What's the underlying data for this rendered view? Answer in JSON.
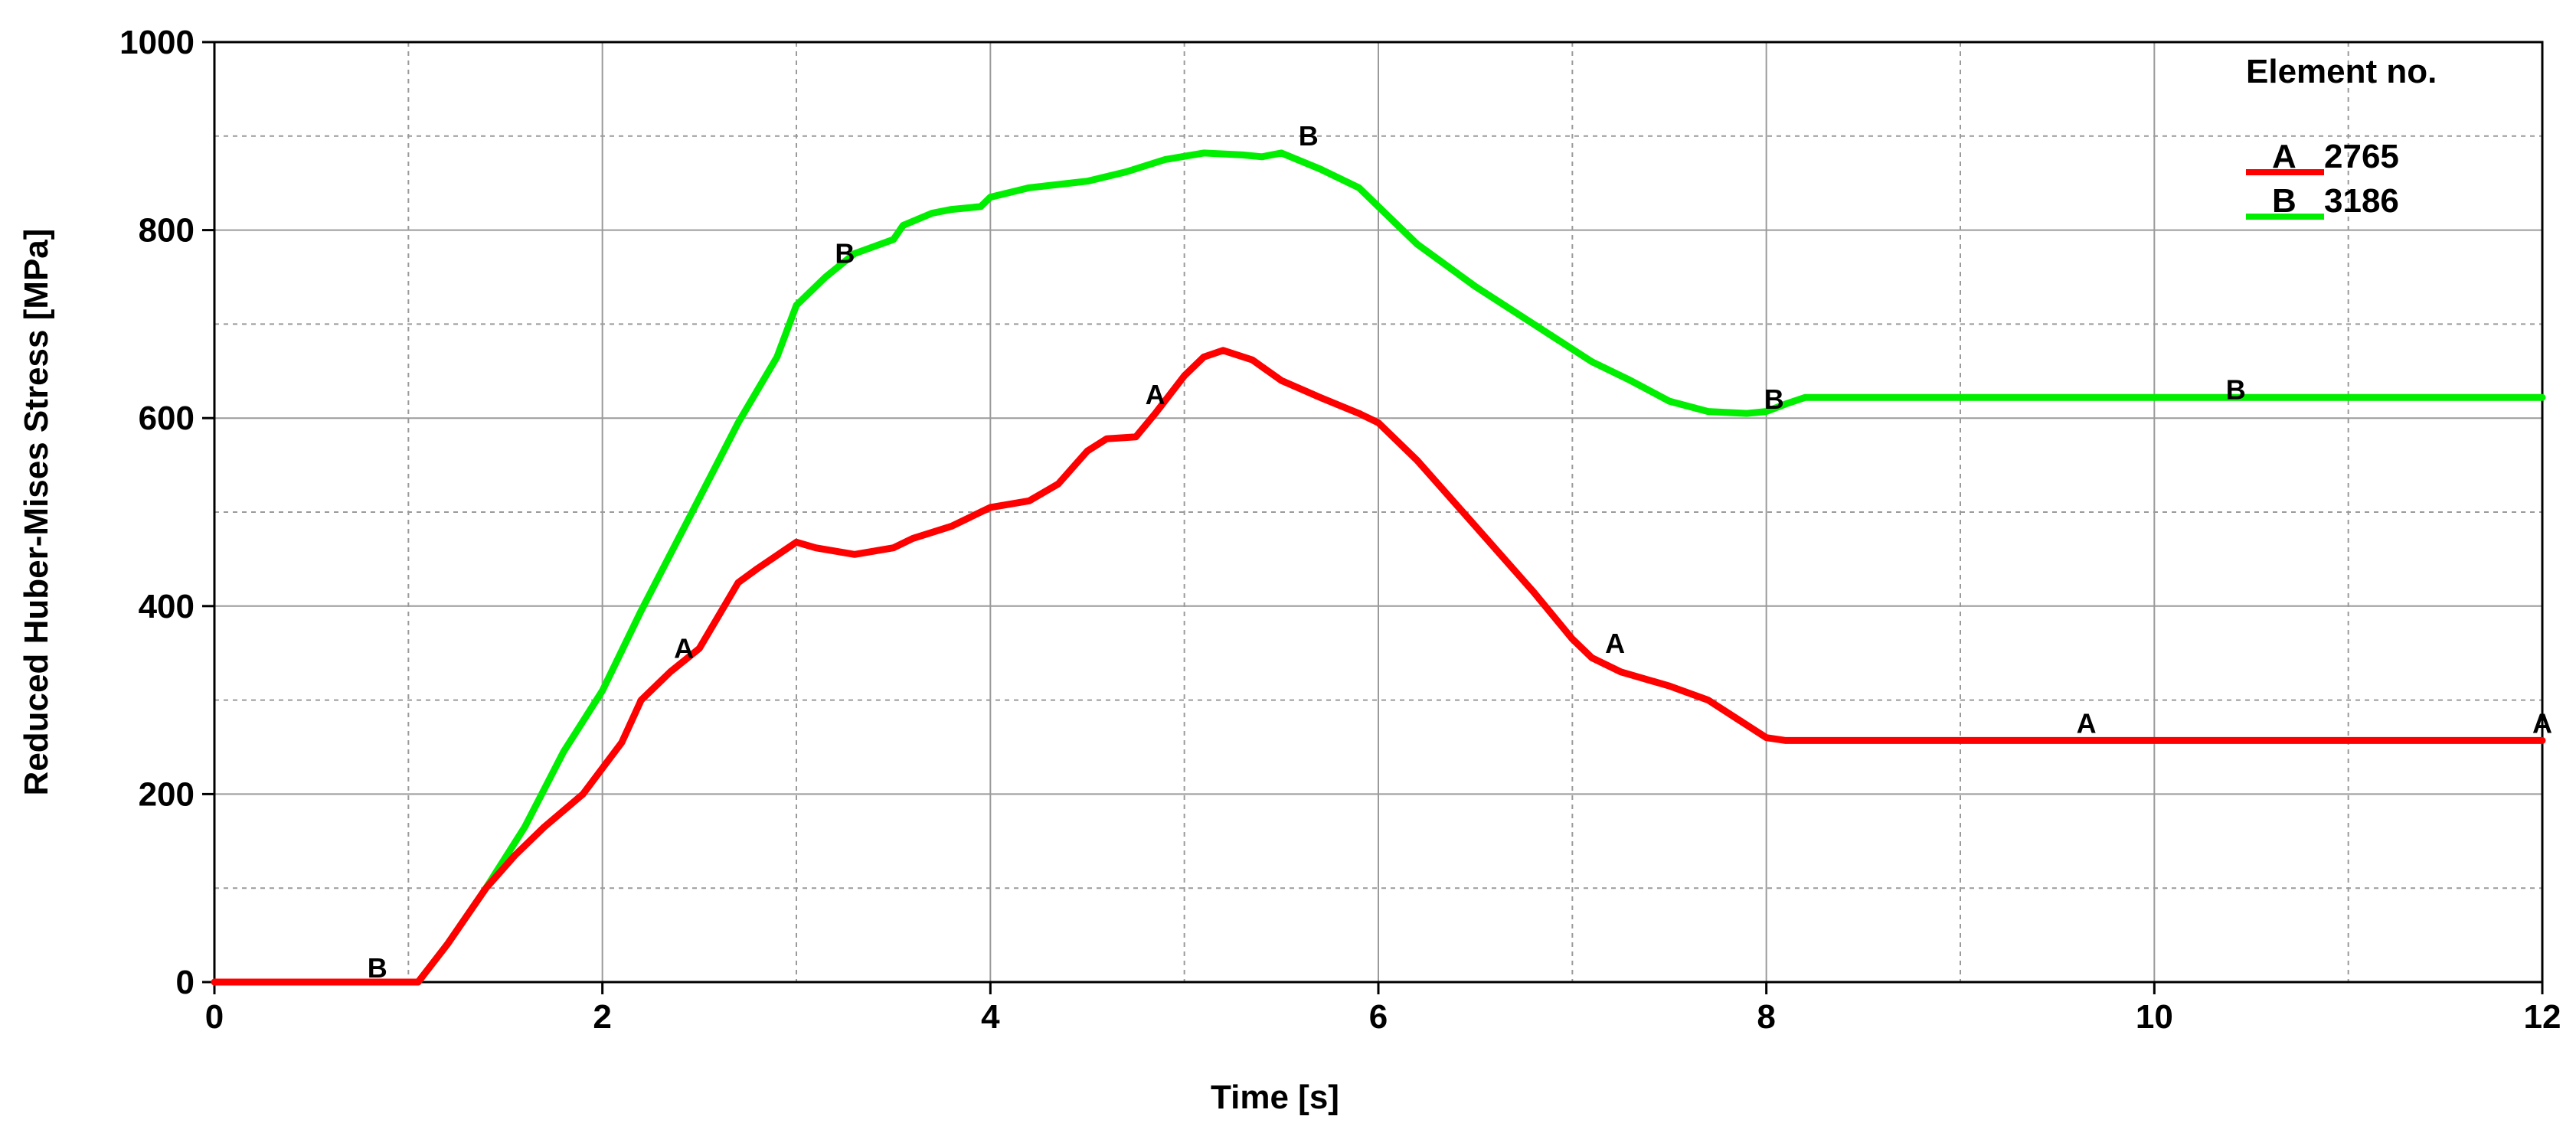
{
  "chart_data": {
    "type": "line",
    "xlabel": "Time [s]",
    "ylabel": "Reduced Huber-Mises Stress [MPa]",
    "xlim": [
      0,
      12
    ],
    "ylim": [
      0,
      1000
    ],
    "x_ticks": [
      0,
      2,
      4,
      6,
      8,
      10,
      12
    ],
    "y_ticks": [
      0,
      200,
      400,
      600,
      800,
      1000
    ],
    "x_minor_step": 1,
    "y_minor_step": 100,
    "grid": true,
    "legend": {
      "title": "Element no.",
      "placement": "top-right",
      "entries": [
        {
          "key": "A",
          "label": "2765",
          "color": "#ff0000"
        },
        {
          "key": "B",
          "label": "3186",
          "color": "#00ee00"
        }
      ]
    },
    "series": [
      {
        "key": "A",
        "name": "2765",
        "color": "#ff0000",
        "points": [
          [
            0,
            0
          ],
          [
            1.0,
            0
          ],
          [
            1.05,
            0
          ],
          [
            1.2,
            40
          ],
          [
            1.4,
            100
          ],
          [
            1.55,
            135
          ],
          [
            1.7,
            165
          ],
          [
            1.9,
            200
          ],
          [
            2.1,
            255
          ],
          [
            2.2,
            300
          ],
          [
            2.35,
            330
          ],
          [
            2.5,
            355
          ],
          [
            2.6,
            390
          ],
          [
            2.7,
            425
          ],
          [
            2.8,
            440
          ],
          [
            3.0,
            468
          ],
          [
            3.1,
            462
          ],
          [
            3.3,
            455
          ],
          [
            3.5,
            462
          ],
          [
            3.6,
            472
          ],
          [
            3.8,
            485
          ],
          [
            4.0,
            505
          ],
          [
            4.2,
            512
          ],
          [
            4.35,
            530
          ],
          [
            4.5,
            565
          ],
          [
            4.6,
            578
          ],
          [
            4.75,
            580
          ],
          [
            4.85,
            605
          ],
          [
            5.0,
            645
          ],
          [
            5.1,
            665
          ],
          [
            5.2,
            672
          ],
          [
            5.35,
            662
          ],
          [
            5.5,
            640
          ],
          [
            5.7,
            622
          ],
          [
            5.9,
            605
          ],
          [
            6.0,
            595
          ],
          [
            6.2,
            555
          ],
          [
            6.5,
            485
          ],
          [
            6.8,
            415
          ],
          [
            7.0,
            365
          ],
          [
            7.1,
            345
          ],
          [
            7.25,
            330
          ],
          [
            7.5,
            315
          ],
          [
            7.7,
            300
          ],
          [
            7.85,
            280
          ],
          [
            8.0,
            260
          ],
          [
            8.1,
            257
          ],
          [
            9.0,
            257
          ],
          [
            10.0,
            257
          ],
          [
            11.0,
            257
          ],
          [
            12.0,
            257
          ]
        ],
        "markers": [
          [
            2.42,
            345
          ],
          [
            4.85,
            615
          ],
          [
            7.22,
            350
          ],
          [
            9.65,
            265
          ],
          [
            12.0,
            265
          ]
        ]
      },
      {
        "key": "B",
        "name": "3186",
        "color": "#00ee00",
        "points": [
          [
            0,
            0
          ],
          [
            1.0,
            0
          ],
          [
            1.05,
            0
          ],
          [
            1.2,
            40
          ],
          [
            1.4,
            100
          ],
          [
            1.6,
            165
          ],
          [
            1.8,
            245
          ],
          [
            2.0,
            310
          ],
          [
            2.2,
            395
          ],
          [
            2.4,
            475
          ],
          [
            2.6,
            555
          ],
          [
            2.7,
            595
          ],
          [
            2.9,
            665
          ],
          [
            3.0,
            720
          ],
          [
            3.15,
            750
          ],
          [
            3.3,
            775
          ],
          [
            3.5,
            790
          ],
          [
            3.55,
            805
          ],
          [
            3.7,
            818
          ],
          [
            3.8,
            822
          ],
          [
            3.95,
            825
          ],
          [
            4.0,
            835
          ],
          [
            4.2,
            845
          ],
          [
            4.5,
            852
          ],
          [
            4.7,
            862
          ],
          [
            4.9,
            875
          ],
          [
            5.1,
            882
          ],
          [
            5.3,
            880
          ],
          [
            5.4,
            878
          ],
          [
            5.5,
            882
          ],
          [
            5.7,
            865
          ],
          [
            5.9,
            845
          ],
          [
            6.0,
            825
          ],
          [
            6.2,
            785
          ],
          [
            6.5,
            740
          ],
          [
            6.8,
            700
          ],
          [
            7.1,
            660
          ],
          [
            7.3,
            640
          ],
          [
            7.5,
            618
          ],
          [
            7.7,
            607
          ],
          [
            7.9,
            605
          ],
          [
            8.0,
            607
          ],
          [
            8.1,
            615
          ],
          [
            8.2,
            622
          ],
          [
            9.0,
            622
          ],
          [
            10.0,
            622
          ],
          [
            11.0,
            622
          ],
          [
            12.0,
            622
          ]
        ],
        "markers": [
          [
            0.84,
            5
          ],
          [
            3.25,
            765
          ],
          [
            5.64,
            890
          ],
          [
            8.04,
            610
          ],
          [
            10.42,
            620
          ]
        ]
      }
    ]
  }
}
